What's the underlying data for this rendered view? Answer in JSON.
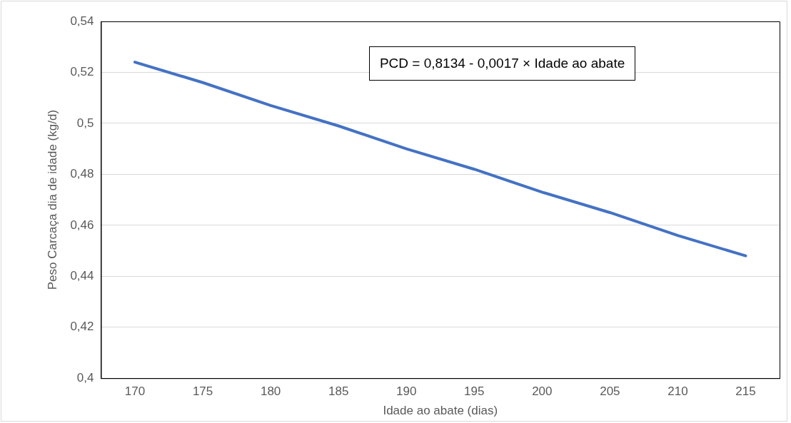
{
  "chart_data": {
    "type": "line",
    "xlabel": "Idade ao abate (dias)",
    "ylabel": "Peso Carcaça dia de idade (kg/d)",
    "categories": [
      "170",
      "175",
      "180",
      "185",
      "190",
      "195",
      "200",
      "205",
      "210",
      "215"
    ],
    "series": [
      {
        "color": "#4472c4",
        "values": [
          0.524,
          0.516,
          0.507,
          0.499,
          0.49,
          0.482,
          0.473,
          0.465,
          0.456,
          0.448
        ]
      }
    ],
    "ylim": [
      0.4,
      0.54
    ],
    "yticks": [
      {
        "value": 0.4,
        "label": "0,4"
      },
      {
        "value": 0.42,
        "label": "0,42"
      },
      {
        "value": 0.44,
        "label": "0,44"
      },
      {
        "value": 0.46,
        "label": "0,46"
      },
      {
        "value": 0.48,
        "label": "0,48"
      },
      {
        "value": 0.5,
        "label": "0,5"
      },
      {
        "value": 0.52,
        "label": "0,52"
      },
      {
        "value": 0.54,
        "label": "0,54"
      }
    ],
    "grid": "y",
    "legend": false,
    "marker": "none",
    "line_style": "solid",
    "annotations": [
      "PCD = 0,8134 - 0,0017 × Idade ao abate"
    ]
  }
}
